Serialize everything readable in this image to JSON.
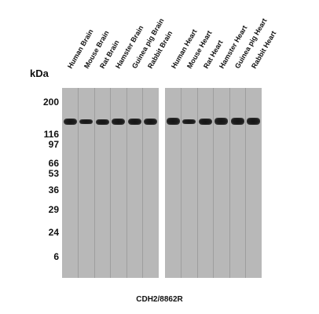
{
  "unit_label": "kDa",
  "markers": [
    "200",
    "116",
    "97",
    "66",
    "53",
    "36",
    "29",
    "24",
    "6"
  ],
  "lanes": [
    "Human Brain",
    "Mouse Brain",
    "Rat Brain",
    "Hamster Brain",
    "Guinea pig Brain",
    "Rabbit Brain",
    "Human Heart",
    "Mouse Heart",
    "Rat Heart",
    "Hamster Heart",
    "Guinea pig Heart",
    "Rabbit Heart"
  ],
  "caption": "CDH2/8862R"
}
